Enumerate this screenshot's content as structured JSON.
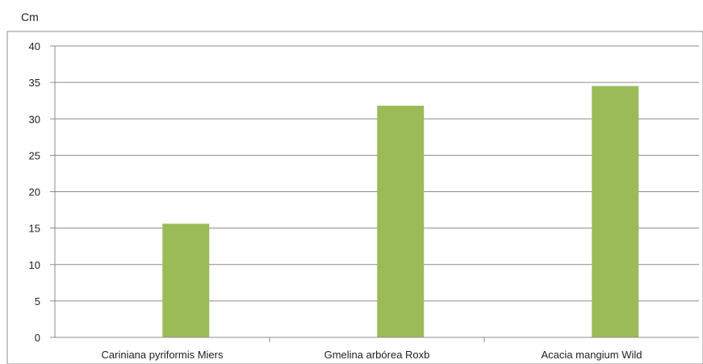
{
  "chart_data": {
    "type": "bar",
    "unit_label": "Cm",
    "categories": [
      "Cariniana pyriformis Miers",
      "Gmelina arbórea Roxb",
      "Acacia mangium Wild"
    ],
    "values": [
      15.6,
      31.8,
      34.5
    ],
    "ylim": [
      0,
      40
    ],
    "yticks": [
      0,
      5,
      10,
      15,
      20,
      25,
      30,
      35,
      40
    ],
    "grid": true,
    "legend": "none",
    "bar_color": "#9bbb59",
    "grid_color": "#8c8c8c",
    "axis_color": "#8c8c8c"
  }
}
